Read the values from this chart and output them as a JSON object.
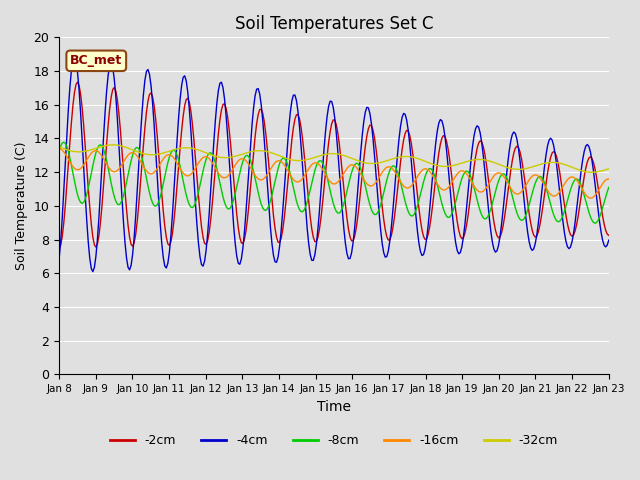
{
  "title": "Soil Temperatures Set C",
  "xlabel": "Time",
  "ylabel": "Soil Temperature (C)",
  "ylim": [
    0,
    20
  ],
  "yticks": [
    0,
    2,
    4,
    6,
    8,
    10,
    12,
    14,
    16,
    18,
    20
  ],
  "legend_label": "BC_met",
  "series_labels": [
    "-2cm",
    "-4cm",
    "-8cm",
    "-16cm",
    "-32cm"
  ],
  "series_colors": [
    "#cc0000",
    "#0000cc",
    "#00cc00",
    "#ff8800",
    "#cccc00"
  ],
  "background_color": "#e0e0e0",
  "plot_bg_color": "#e0e0e0",
  "x_tick_labels": [
    "Jan 8",
    "Jan 9",
    "Jan 10",
    "Jan 11",
    "Jan 12",
    "Jan 13",
    "Jan 14",
    "Jan 15",
    "Jan 16",
    "Jan 17",
    "Jan 18",
    "Jan 19",
    "Jan 20",
    "Jan 21",
    "Jan 22",
    "Jan 23"
  ],
  "num_days": 15,
  "points_per_day": 24
}
